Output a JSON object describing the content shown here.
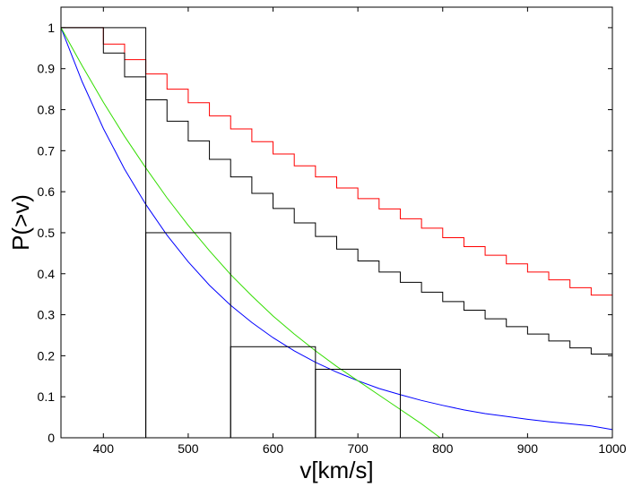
{
  "chart_data": {
    "type": "line",
    "title": "",
    "xlabel": "v[km/s]",
    "ylabel": "P(>v)",
    "xlim": [
      350,
      1000
    ],
    "ylim": [
      0,
      1.05
    ],
    "grid": false,
    "legend": "none",
    "x_ticks": [
      "400",
      "500",
      "600",
      "700",
      "800",
      "900",
      "1000"
    ],
    "y_ticks": [
      "0",
      "0.1",
      "0.2",
      "0.3",
      "0.4",
      "0.5",
      "0.6",
      "0.7",
      "0.8",
      "0.9",
      "1"
    ],
    "colors": {
      "red": "#ff0000",
      "black": "#000000",
      "blue": "#0000ff",
      "green": "#33dd00"
    },
    "series": [
      {
        "style": "step",
        "color": "#ff0000",
        "x": [
          380,
          400,
          425,
          450,
          475,
          500,
          525,
          550,
          575,
          600,
          625,
          650,
          675,
          700,
          725,
          750,
          775,
          800,
          825,
          850,
          875,
          900,
          925,
          950,
          975,
          1000
        ],
        "y": [
          1.0,
          0.96,
          0.922,
          0.887,
          0.85,
          0.817,
          0.785,
          0.753,
          0.722,
          0.692,
          0.663,
          0.636,
          0.609,
          0.583,
          0.558,
          0.534,
          0.511,
          0.488,
          0.466,
          0.445,
          0.424,
          0.404,
          0.385,
          0.366,
          0.348,
          0.348
        ]
      },
      {
        "style": "step",
        "color": "#000000",
        "x": [
          380,
          400,
          425,
          450,
          475,
          500,
          525,
          550,
          575,
          600,
          625,
          650,
          675,
          700,
          725,
          750,
          775,
          800,
          825,
          850,
          875,
          900,
          925,
          950,
          975,
          1000
        ],
        "y": [
          1.0,
          0.938,
          0.88,
          0.824,
          0.772,
          0.724,
          0.679,
          0.636,
          0.596,
          0.559,
          0.524,
          0.491,
          0.46,
          0.431,
          0.404,
          0.379,
          0.355,
          0.332,
          0.311,
          0.29,
          0.271,
          0.253,
          0.236,
          0.219,
          0.204,
          0.204
        ]
      },
      {
        "style": "curve",
        "color": "#0000ff",
        "x": [
          350,
          375,
          400,
          425,
          450,
          475,
          500,
          525,
          550,
          575,
          600,
          625,
          650,
          675,
          700,
          725,
          750,
          775,
          800,
          825,
          850,
          875,
          900,
          925,
          950,
          975,
          1000
        ],
        "y": [
          1.0,
          0.868,
          0.754,
          0.655,
          0.569,
          0.494,
          0.429,
          0.372,
          0.323,
          0.281,
          0.244,
          0.212,
          0.184,
          0.16,
          0.139,
          0.12,
          0.105,
          0.091,
          0.079,
          0.068,
          0.059,
          0.052,
          0.045,
          0.039,
          0.034,
          0.029,
          0.02
        ]
      },
      {
        "style": "curve",
        "color": "#33dd00",
        "x": [
          350,
          375,
          400,
          425,
          450,
          475,
          500,
          525,
          550,
          575,
          600,
          625,
          650,
          675,
          700,
          725,
          750,
          775,
          797
        ],
        "y": [
          1.0,
          0.907,
          0.818,
          0.735,
          0.658,
          0.585,
          0.518,
          0.456,
          0.398,
          0.346,
          0.297,
          0.253,
          0.212,
          0.174,
          0.139,
          0.104,
          0.069,
          0.034,
          0.0
        ]
      },
      {
        "style": "histogram",
        "color": "#000000",
        "bins": [
          {
            "x0": 350,
            "x1": 450,
            "y": 1.0
          },
          {
            "x0": 450,
            "x1": 550,
            "y": 0.5
          },
          {
            "x0": 550,
            "x1": 650,
            "y": 0.222
          },
          {
            "x0": 650,
            "x1": 750,
            "y": 0.167
          }
        ]
      }
    ]
  }
}
